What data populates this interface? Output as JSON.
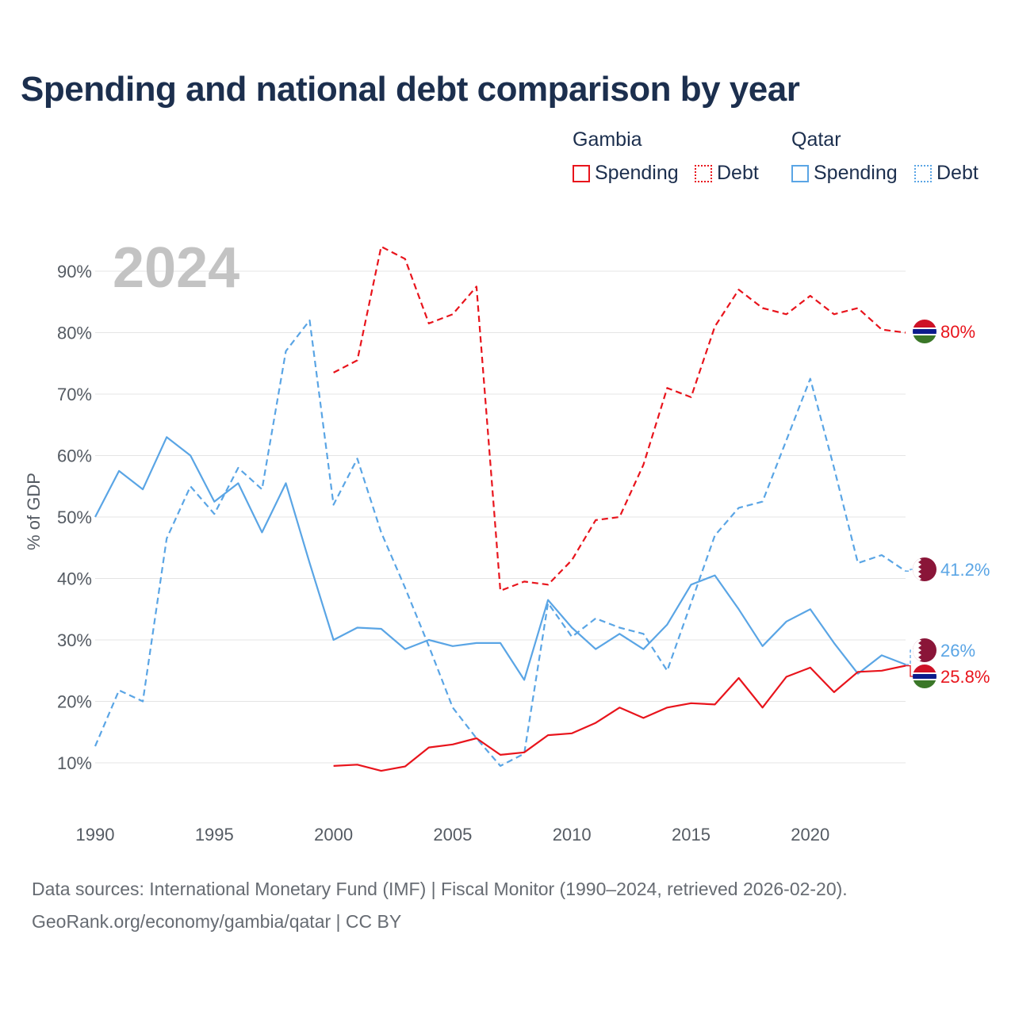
{
  "title": "Spending and national debt comparison by year",
  "legend": {
    "groups": [
      {
        "country": "Gambia",
        "spending_label": "Spending",
        "debt_label": "Debt",
        "color": "#e8141c"
      },
      {
        "country": "Qatar",
        "spending_label": "Spending",
        "debt_label": "Debt",
        "color": "#5aa5e5"
      }
    ]
  },
  "footer": {
    "sources": "Data sources: International Monetary Fund (IMF) | Fiscal Monitor (1990–2024, retrieved 2026-02-20).",
    "credit": "GeoRank.org/economy/gambia/qatar | CC BY"
  },
  "chart_data": {
    "type": "line",
    "title": "Spending and national debt comparison by year",
    "watermark_year": "2024",
    "ylabel": "% of GDP",
    "xlabel": "",
    "xlim": [
      1990,
      2024
    ],
    "ylim": [
      0,
      95
    ],
    "x_ticks": [
      1990,
      1995,
      2000,
      2005,
      2010,
      2015,
      2020
    ],
    "y_ticks": [
      {
        "value": 10,
        "label": "10%"
      },
      {
        "value": 20,
        "label": "20%"
      },
      {
        "value": 30,
        "label": "30%"
      },
      {
        "value": 40,
        "label": "40%"
      },
      {
        "value": 50,
        "label": "50%"
      },
      {
        "value": 60,
        "label": "60%"
      },
      {
        "value": 70,
        "label": "70%"
      },
      {
        "value": 80,
        "label": "80%"
      },
      {
        "value": 90,
        "label": "90%"
      }
    ],
    "grid": true,
    "series": [
      {
        "name": "Qatar Debt",
        "country": "Qatar",
        "metric": "Debt",
        "style": "dashed",
        "color": "#5aa5e5",
        "x": [
          1990,
          1991,
          1992,
          1993,
          1994,
          1995,
          1996,
          1997,
          1998,
          1999,
          2000,
          2001,
          2002,
          2003,
          2004,
          2005,
          2006,
          2007,
          2008,
          2009,
          2010,
          2011,
          2012,
          2013,
          2014,
          2015,
          2016,
          2017,
          2018,
          2019,
          2020,
          2021,
          2022,
          2023,
          2024
        ],
        "values": [
          12.7,
          21.8,
          20.0,
          46.5,
          55.0,
          50.5,
          58.0,
          54.5,
          77.0,
          82.0,
          52.0,
          59.5,
          47.5,
          38.5,
          29.0,
          19.0,
          14.0,
          9.5,
          11.5,
          36.0,
          30.5,
          33.5,
          32.0,
          31.0,
          25.0,
          36.0,
          47.0,
          51.5,
          52.5,
          62.5,
          72.5,
          58.0,
          42.5,
          43.8,
          41.2
        ],
        "end_label": "41.2%"
      },
      {
        "name": "Qatar Spending",
        "country": "Qatar",
        "metric": "Spending",
        "style": "solid",
        "color": "#5aa5e5",
        "x": [
          1990,
          1991,
          1992,
          1993,
          1994,
          1995,
          1996,
          1997,
          1998,
          1999,
          2000,
          2001,
          2002,
          2003,
          2004,
          2005,
          2006,
          2007,
          2008,
          2009,
          2010,
          2011,
          2012,
          2013,
          2014,
          2015,
          2016,
          2017,
          2018,
          2019,
          2020,
          2021,
          2022,
          2023,
          2024
        ],
        "values": [
          50.0,
          57.5,
          54.5,
          63.0,
          60.0,
          52.5,
          55.5,
          47.5,
          55.5,
          42.5,
          30.0,
          32.0,
          31.8,
          28.5,
          30.0,
          29.0,
          29.5,
          29.5,
          23.5,
          36.5,
          32.0,
          28.5,
          31.0,
          28.5,
          32.5,
          39.0,
          40.5,
          35.0,
          29.0,
          33.0,
          35.0,
          29.5,
          24.5,
          27.5,
          26.0
        ],
        "end_label": "26%"
      },
      {
        "name": "Gambia Debt",
        "country": "Gambia",
        "metric": "Debt",
        "style": "dashed",
        "color": "#e8141c",
        "x": [
          2000,
          2001,
          2002,
          2003,
          2004,
          2005,
          2006,
          2007,
          2008,
          2009,
          2010,
          2011,
          2012,
          2013,
          2014,
          2015,
          2016,
          2017,
          2018,
          2019,
          2020,
          2021,
          2022,
          2023,
          2024
        ],
        "values": [
          73.5,
          75.5,
          94.0,
          92.0,
          81.5,
          83.0,
          87.5,
          38.0,
          39.5,
          39.0,
          43.0,
          49.5,
          50.0,
          58.5,
          71.0,
          69.5,
          81.0,
          87.0,
          84.0,
          83.0,
          86.0,
          83.0,
          84.0,
          80.5,
          80.0
        ],
        "end_label": "80%"
      },
      {
        "name": "Gambia Spending",
        "country": "Gambia",
        "metric": "Spending",
        "style": "solid",
        "color": "#e8141c",
        "x": [
          2000,
          2001,
          2002,
          2003,
          2004,
          2005,
          2006,
          2007,
          2008,
          2009,
          2010,
          2011,
          2012,
          2013,
          2014,
          2015,
          2016,
          2017,
          2018,
          2019,
          2020,
          2021,
          2022,
          2023,
          2024
        ],
        "values": [
          9.5,
          9.7,
          8.7,
          9.4,
          12.5,
          13.0,
          14.0,
          11.3,
          11.7,
          14.5,
          14.8,
          16.5,
          19.0,
          17.3,
          19.0,
          19.7,
          19.5,
          23.8,
          19.0,
          24.0,
          25.5,
          21.5,
          24.8,
          25.0,
          25.8
        ],
        "end_label": "25.8%"
      }
    ]
  }
}
